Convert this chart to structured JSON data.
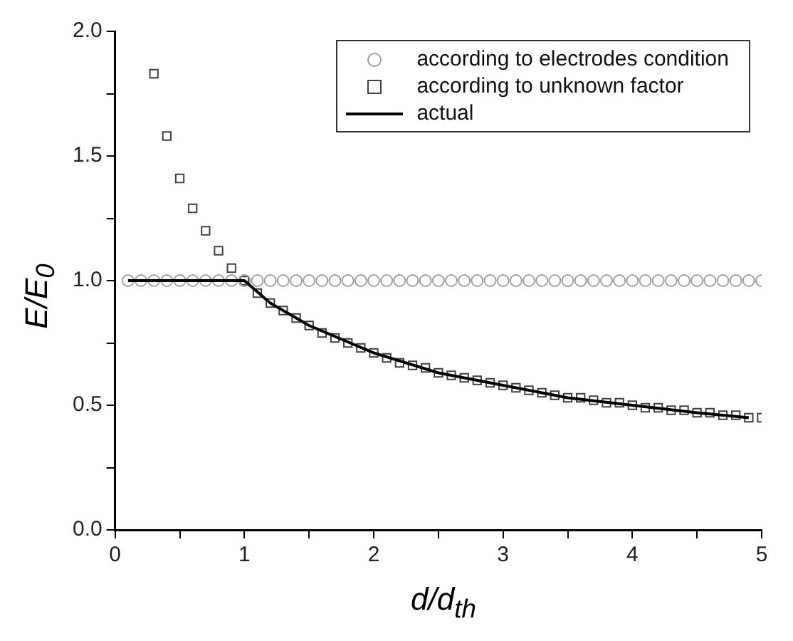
{
  "chart_data": {
    "type": "scatter",
    "xlabel": "d/d$_{th}$",
    "ylabel": "E/E$_{0}$",
    "xlim": [
      0,
      5
    ],
    "xticks": [
      0,
      {
        "value": 0.5,
        "label": null
      },
      1,
      {
        "value": 1.5,
        "label": null
      },
      2,
      {
        "value": 2.5,
        "label": null
      },
      3,
      {
        "value": 3.5,
        "label": null
      },
      4,
      {
        "value": 4.5,
        "label": null
      },
      5
    ],
    "ylim": [
      0,
      2
    ],
    "yticks": [
      "0.0",
      {
        "value": 0.25,
        "label": null
      },
      {
        "value": 0.5,
        "label": "0.5"
      },
      {
        "value": 0.75,
        "label": null
      },
      {
        "value": 1,
        "label": "1.0"
      },
      {
        "value": 1.25,
        "label": null
      },
      {
        "value": 1.5,
        "label": "1.5"
      },
      {
        "value": 1.75,
        "label": null
      },
      {
        "value": 2,
        "label": "2.0"
      }
    ],
    "grid": false,
    "legend": "top right",
    "series": [
      {
        "name": "according to electrodes condition",
        "type": "scatter",
        "marker": "circle",
        "color": "#a0a0a0",
        "x": [
          0.1,
          0.2,
          0.3,
          0.4,
          0.5,
          0.6,
          0.7,
          0.8,
          0.9,
          1.0,
          1.1,
          1.2,
          1.3,
          1.4,
          1.5,
          1.6,
          1.7,
          1.8,
          1.9,
          2.0,
          2.1,
          2.2,
          2.3,
          2.4,
          2.5,
          2.6,
          2.7,
          2.8,
          2.9,
          3.0,
          3.1,
          3.2,
          3.3,
          3.4,
          3.5,
          3.6,
          3.7,
          3.8,
          3.9,
          4.0,
          4.1,
          4.2,
          4.3,
          4.4,
          4.5,
          4.6,
          4.7,
          4.8,
          4.9,
          5.0
        ],
        "values": [
          1,
          1,
          1,
          1,
          1,
          1,
          1,
          1,
          1,
          1,
          1,
          1,
          1,
          1,
          1,
          1,
          1,
          1,
          1,
          1,
          1,
          1,
          1,
          1,
          1,
          1,
          1,
          1,
          1,
          1,
          1,
          1,
          1,
          1,
          1,
          1,
          1,
          1,
          1,
          1,
          1,
          1,
          1,
          1,
          1,
          1,
          1,
          1,
          1,
          1
        ]
      },
      {
        "name": "according to unknown factor",
        "type": "scatter",
        "marker": "square",
        "color": "#404040",
        "x": [
          0.3,
          0.4,
          0.5,
          0.6,
          0.7,
          0.8,
          0.9,
          1.0,
          1.1,
          1.2,
          1.3,
          1.4,
          1.5,
          1.6,
          1.7,
          1.8,
          1.9,
          2.0,
          2.1,
          2.2,
          2.3,
          2.4,
          2.5,
          2.6,
          2.7,
          2.8,
          2.9,
          3.0,
          3.1,
          3.2,
          3.3,
          3.4,
          3.5,
          3.6,
          3.7,
          3.8,
          3.9,
          4.0,
          4.1,
          4.2,
          4.3,
          4.4,
          4.5,
          4.6,
          4.7,
          4.8,
          4.9,
          5.0
        ],
        "values": [
          1.83,
          1.58,
          1.41,
          1.29,
          1.2,
          1.12,
          1.05,
          1.0,
          0.95,
          0.91,
          0.88,
          0.85,
          0.82,
          0.79,
          0.77,
          0.75,
          0.73,
          0.71,
          0.69,
          0.67,
          0.66,
          0.65,
          0.63,
          0.62,
          0.61,
          0.6,
          0.59,
          0.58,
          0.57,
          0.56,
          0.55,
          0.54,
          0.53,
          0.53,
          0.52,
          0.51,
          0.51,
          0.5,
          0.49,
          0.49,
          0.48,
          0.48,
          0.47,
          0.47,
          0.46,
          0.46,
          0.45,
          0.45
        ]
      },
      {
        "name": "actual",
        "type": "line",
        "marker": "none",
        "line_style": "solid",
        "color": "#000000",
        "x": [
          0.1,
          1.0,
          1.2,
          1.5,
          2.0,
          2.5,
          3.0,
          3.5,
          4.0,
          4.5,
          4.9
        ],
        "values": [
          1,
          1,
          0.91,
          0.82,
          0.71,
          0.63,
          0.58,
          0.53,
          0.5,
          0.47,
          0.45
        ]
      }
    ]
  }
}
